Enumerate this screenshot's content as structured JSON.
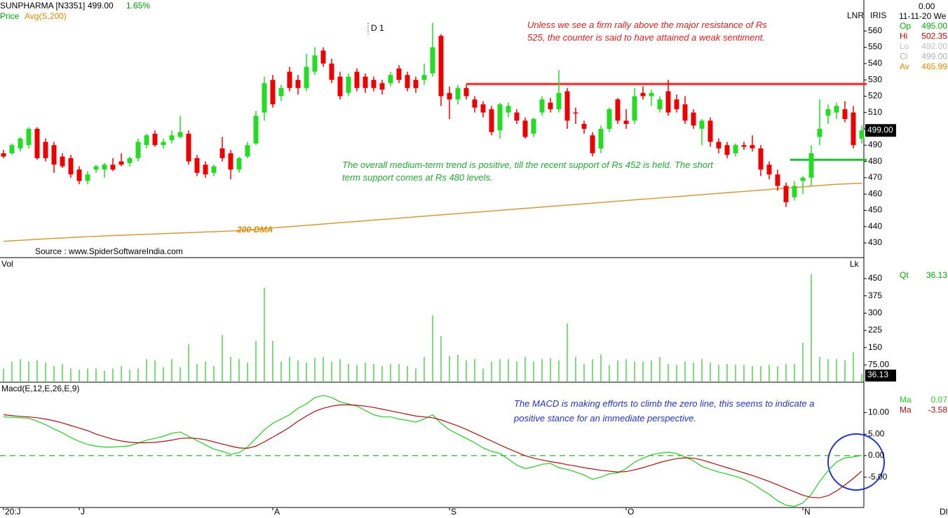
{
  "header": {
    "symbol": "SUNPHARMA [N3351]",
    "price": "499.00",
    "change": "1.65%",
    "indicator_label": "Price",
    "indicator": "Avg(S,200)",
    "period": "D 1",
    "source": "Source : www.SpiderSoftwareIndia.com",
    "interval": "Dly"
  },
  "side": {
    "top": "0.00",
    "date": "11-11-20 We",
    "mode1": "LNR",
    "mode2": "IRIS",
    "fields": [
      {
        "label": "Op",
        "value": "495.00",
        "color": "#00b000"
      },
      {
        "label": "Hi",
        "value": "502.35",
        "color": "#d00000"
      },
      {
        "label": "Lo",
        "value": "492.00",
        "color": "#c0c0c0"
      },
      {
        "label": "Cl",
        "value": "499.00",
        "color": "#b0b0b0"
      },
      {
        "label": "Av",
        "value": "465.99",
        "color": "#e08a00"
      }
    ]
  },
  "annotations": {
    "resistance": "Unless we see a firm rally above the major resistance of Rs 525, the counter is said to have attained a weak sentiment.",
    "support": "The overall medium-term trend is positive, till the recent support of Rs 452 is held. The short term support comes at Rs 480 levels.",
    "macd": "The MACD is making efforts to climb the zero line, this seems to indicate a positive stance for an immediate perspective."
  },
  "chart_data": [
    {
      "type": "candlestick",
      "up_color": "#22dd22",
      "down_color": "#ee0000",
      "last_label": "499.00",
      "categories": [
        "20:J",
        null,
        null,
        null,
        null,
        null,
        null,
        null,
        null,
        "J",
        null,
        null,
        null,
        null,
        null,
        null,
        null,
        null,
        null,
        null,
        null,
        null,
        null,
        null,
        null,
        null,
        null,
        null,
        null,
        null,
        null,
        null,
        "A",
        null,
        null,
        null,
        null,
        null,
        null,
        null,
        null,
        null,
        null,
        null,
        null,
        null,
        null,
        null,
        null,
        null,
        null,
        null,
        null,
        "S",
        null,
        null,
        null,
        null,
        null,
        null,
        null,
        null,
        null,
        null,
        null,
        null,
        null,
        null,
        null,
        null,
        null,
        null,
        null,
        null,
        "O",
        null,
        null,
        null,
        null,
        null,
        null,
        null,
        null,
        null,
        null,
        null,
        null,
        null,
        null,
        null,
        null,
        null,
        null,
        null,
        null,
        "N",
        null,
        null,
        null,
        null,
        null,
        null,
        null
      ],
      "candles": [
        [
          485,
          487,
          482,
          483
        ],
        [
          485,
          491,
          484,
          490
        ],
        [
          488,
          495,
          486,
          494
        ],
        [
          490,
          501,
          488,
          500
        ],
        [
          500,
          501,
          481,
          482
        ],
        [
          492,
          494,
          480,
          482
        ],
        [
          490,
          492,
          473,
          478
        ],
        [
          483,
          485,
          476,
          477
        ],
        [
          482,
          484,
          470,
          472
        ],
        [
          475,
          477,
          466,
          468
        ],
        [
          468,
          474,
          466,
          472
        ],
        [
          475,
          478,
          473,
          477
        ],
        [
          475,
          479,
          470,
          478
        ],
        [
          478,
          482,
          474,
          475
        ],
        [
          480,
          485,
          477,
          478
        ],
        [
          479,
          483,
          477,
          482
        ],
        [
          482,
          494,
          480,
          492
        ],
        [
          490,
          497,
          488,
          496
        ],
        [
          497,
          499,
          489,
          490
        ],
        [
          490,
          494,
          488,
          492
        ],
        [
          493,
          499,
          491,
          496
        ],
        [
          495,
          508,
          494,
          498
        ],
        [
          497,
          499,
          478,
          480
        ],
        [
          482,
          484,
          471,
          473
        ],
        [
          478,
          480,
          470,
          472
        ],
        [
          473,
          478,
          471,
          477
        ],
        [
          488,
          495,
          480,
          482
        ],
        [
          485,
          487,
          469,
          475
        ],
        [
          475,
          483,
          473,
          482
        ],
        [
          483,
          492,
          482,
          490
        ],
        [
          491,
          511,
          490,
          508
        ],
        [
          510,
          532,
          505,
          528
        ],
        [
          530,
          533,
          513,
          515
        ],
        [
          520,
          527,
          517,
          525
        ],
        [
          535,
          538,
          523,
          525
        ],
        [
          530,
          533,
          521,
          525
        ],
        [
          525,
          546,
          523,
          538
        ],
        [
          535,
          550,
          533,
          545
        ],
        [
          548,
          550,
          538,
          540
        ],
        [
          540,
          543,
          528,
          530
        ],
        [
          532,
          535,
          518,
          520
        ],
        [
          522,
          534,
          520,
          532
        ],
        [
          535,
          537,
          523,
          525
        ],
        [
          532,
          534,
          522,
          525
        ],
        [
          530,
          532,
          523,
          525
        ],
        [
          528,
          530,
          521,
          524
        ],
        [
          528,
          535,
          526,
          533
        ],
        [
          537,
          539,
          528,
          530
        ],
        [
          533,
          535,
          523,
          525
        ],
        [
          530,
          532,
          522,
          525
        ],
        [
          530,
          540,
          527,
          533
        ],
        [
          534,
          565,
          532,
          550
        ],
        [
          557,
          558,
          514,
          520
        ],
        [
          522,
          526,
          506,
          518
        ],
        [
          518,
          527,
          515,
          525
        ],
        [
          525,
          527,
          518,
          520
        ],
        [
          518,
          520,
          510,
          513
        ],
        [
          515,
          517,
          507,
          510
        ],
        [
          512,
          514,
          496,
          498
        ],
        [
          499,
          516,
          494,
          515
        ],
        [
          510,
          516,
          507,
          514
        ],
        [
          510,
          512,
          503,
          505
        ],
        [
          505,
          507,
          494,
          495
        ],
        [
          497,
          507,
          495,
          506
        ],
        [
          510,
          520,
          508,
          518
        ],
        [
          516,
          519,
          510,
          512
        ],
        [
          512,
          536,
          510,
          522
        ],
        [
          523,
          525,
          500,
          505
        ],
        [
          510,
          513,
          503,
          510
        ],
        [
          503,
          505,
          497,
          500
        ],
        [
          496,
          498,
          483,
          485
        ],
        [
          488,
          502,
          485,
          500
        ],
        [
          500,
          513,
          498,
          512
        ],
        [
          518,
          519,
          503,
          505
        ],
        [
          505,
          512,
          500,
          503
        ],
        [
          505,
          525,
          503,
          520
        ],
        [
          522,
          526,
          518,
          520
        ],
        [
          520,
          524,
          514,
          522
        ],
        [
          512,
          520,
          510,
          518
        ],
        [
          523,
          530,
          508,
          510
        ],
        [
          518,
          521,
          510,
          512
        ],
        [
          515,
          520,
          503,
          505
        ],
        [
          510,
          512,
          500,
          502
        ],
        [
          500,
          506,
          490,
          505
        ],
        [
          505,
          507,
          489,
          492
        ],
        [
          492,
          494,
          485,
          488
        ],
        [
          490,
          492,
          482,
          484
        ],
        [
          485,
          491,
          483,
          490
        ],
        [
          490,
          492,
          487,
          489
        ],
        [
          490,
          496,
          486,
          488
        ],
        [
          488,
          490,
          471,
          475
        ],
        [
          478,
          480,
          469,
          472
        ],
        [
          472,
          475,
          462,
          465
        ],
        [
          465,
          467,
          452,
          455
        ],
        [
          458,
          468,
          456,
          465
        ],
        [
          468,
          471,
          460,
          470
        ],
        [
          470,
          490,
          465,
          485
        ],
        [
          495,
          518,
          490,
          500
        ],
        [
          508,
          515,
          503,
          512
        ],
        [
          510,
          516,
          506,
          514
        ],
        [
          512,
          517,
          504,
          506
        ],
        [
          510,
          514,
          488,
          490
        ],
        [
          494,
          502,
          491,
          499
        ]
      ],
      "dma": {
        "name": "200-DMA",
        "color": "#d49a3a",
        "values": [
          431,
          431.3,
          431.6,
          431.9,
          432.2,
          432.5,
          432.8,
          433,
          433.3,
          433.6,
          433.8,
          434,
          434.3,
          434.5,
          434.7,
          434.9,
          435.1,
          435.3,
          435.5,
          435.7,
          435.9,
          436.1,
          436.3,
          436.5,
          436.7,
          436.9,
          437.1,
          437.3,
          437.6,
          437.9,
          438.4,
          438.8,
          439.2,
          439.6,
          440,
          440.4,
          440.8,
          441.2,
          441.6,
          442,
          442.4,
          442.8,
          443.2,
          443.6,
          444,
          444.4,
          444.8,
          445.2,
          445.6,
          446,
          446.4,
          446.8,
          447.2,
          447.6,
          448,
          448.4,
          448.8,
          449.2,
          449.6,
          450,
          450.4,
          450.8,
          451.2,
          451.6,
          452,
          452.4,
          452.8,
          453.2,
          453.6,
          454,
          454.4,
          454.8,
          455.2,
          455.6,
          456,
          456.4,
          456.8,
          457.2,
          457.6,
          458,
          458.4,
          458.8,
          459.2,
          459.6,
          460,
          460.4,
          460.8,
          461.2,
          461.6,
          462,
          462.4,
          462.8,
          463.2,
          463.6,
          464,
          464.4,
          464.8,
          465.2,
          465.6,
          466,
          466.2,
          466.4,
          466.6
        ]
      },
      "levels": [
        {
          "value": 527.5,
          "color": "#ff2020"
        },
        {
          "value": 481,
          "color": "#22bb33"
        }
      ],
      "ylim": [
        421,
        579
      ],
      "yticks": [
        430,
        440,
        450,
        460,
        470,
        480,
        490,
        500,
        510,
        520,
        530,
        540,
        550,
        560
      ]
    },
    {
      "type": "bar",
      "title": "Vol",
      "unit": "Lk",
      "qty_label": "Qt",
      "color": "#33cc33",
      "values": [
        60,
        90,
        100,
        90,
        95,
        85,
        70,
        80,
        60,
        55,
        60,
        60,
        50,
        60,
        70,
        55,
        60,
        100,
        95,
        65,
        100,
        65,
        165,
        80,
        90,
        70,
        205,
        110,
        100,
        85,
        180,
        410,
        180,
        90,
        110,
        95,
        85,
        105,
        110,
        90,
        100,
        80,
        75,
        85,
        80,
        70,
        80,
        80,
        70,
        60,
        110,
        290,
        200,
        115,
        120,
        95,
        100,
        60,
        90,
        100,
        100,
        90,
        110,
        90,
        100,
        105,
        95,
        255,
        110,
        80,
        100,
        120,
        75,
        95,
        100,
        90,
        90,
        95,
        110,
        80,
        75,
        90,
        85,
        100,
        85,
        75,
        80,
        75,
        75,
        70,
        70,
        75,
        70,
        80,
        80,
        170,
        470,
        110,
        100,
        100,
        95,
        130,
        36.13
      ],
      "ylim": [
        0,
        535
      ],
      "yticks": [
        {
          "value": 75,
          "label": "75.00"
        },
        150,
        225,
        300,
        375,
        450
      ]
    },
    {
      "type": "line",
      "title": "Macd(E,12,E,26,E,9)",
      "zero_dash_color": "#009900",
      "series": [
        {
          "name": "Ma",
          "color": "#22cc22",
          "values": [
            9,
            8.9,
            8.8,
            8.7,
            8,
            7.2,
            6.2,
            5.3,
            4.2,
            3.3,
            2.6,
            2.2,
            2,
            2,
            2.1,
            2.3,
            2.9,
            3.6,
            4,
            4.5,
            5.2,
            5.5,
            4.5,
            3.5,
            2.5,
            1.5,
            1,
            0.3,
            0.7,
            2,
            4,
            6,
            7.5,
            8.5,
            9.5,
            11,
            12,
            13.5,
            14,
            13.5,
            12.5,
            12,
            11.5,
            10.5,
            9.5,
            9,
            9,
            8.5,
            8.2,
            7.8,
            8.5,
            9.5,
            7.5,
            6,
            5,
            4,
            3,
            1.8,
            1,
            0.5,
            -0.8,
            -2.2,
            -3,
            -2.6,
            -2,
            -1.8,
            -2.8,
            -3.2,
            -3.8,
            -4.5,
            -5.5,
            -5,
            -4.2,
            -4,
            -3,
            -1.5,
            -0.6,
            0.2,
            0.6,
            0.8,
            0.5,
            -0.3,
            -1.2,
            -2.5,
            -3.2,
            -3.8,
            -4.3,
            -4.8,
            -5.5,
            -6.5,
            -7.8,
            -9,
            -10.5,
            -11.5,
            -11.8,
            -11,
            -9,
            -6,
            -3.5,
            -1.5,
            -0.5,
            -0.3,
            0.07
          ]
        },
        {
          "name": "Ma",
          "color": "#aa1111",
          "values": [
            9.5,
            9.3,
            9.1,
            9,
            8.8,
            8.5,
            8.1,
            7.6,
            7,
            6.4,
            5.8,
            5,
            4.4,
            3.8,
            3.4,
            3.1,
            3,
            3,
            3.1,
            3.3,
            3.6,
            4,
            4.1,
            4,
            3.7,
            3.2,
            2.7,
            2.2,
            1.8,
            1.7,
            2.2,
            3.2,
            4.3,
            5.4,
            6.6,
            8,
            9.2,
            10.3,
            11,
            11.5,
            11.8,
            11.8,
            11.7,
            11.5,
            11.2,
            10.8,
            10.4,
            10,
            9.6,
            9.2,
            9,
            8.8,
            8.3,
            7.6,
            6.9,
            6.1,
            5.2,
            4.3,
            3.4,
            2.5,
            1.6,
            0.8,
            0,
            -0.6,
            -1,
            -1.4,
            -1.7,
            -2.1,
            -2.4,
            -2.8,
            -3.1,
            -3.4,
            -3.6,
            -3.8,
            -3.7,
            -3.3,
            -2.8,
            -2.2,
            -1.6,
            -1.1,
            -0.7,
            -0.5,
            -0.6,
            -1,
            -1.6,
            -2.2,
            -2.8,
            -3.4,
            -4,
            -4.6,
            -5.3,
            -6,
            -6.8,
            -7.6,
            -8.4,
            -9.2,
            -9.7,
            -9.8,
            -9.3,
            -8.2,
            -6.8,
            -5.3,
            -3.58
          ]
        }
      ],
      "ylim": [
        -12.05,
        16.9
      ],
      "yticks": [
        {
          "value": 10,
          "label": "10.00"
        },
        {
          "value": 5,
          "label": "5.00"
        },
        {
          "value": 0,
          "label": "0.00"
        },
        {
          "value": -5,
          "label": "-5.00"
        }
      ]
    }
  ]
}
